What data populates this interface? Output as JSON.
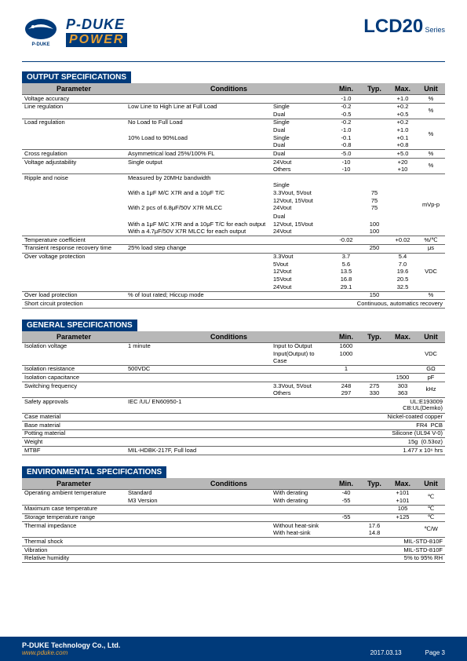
{
  "header": {
    "brand_sub": "P-DUKE",
    "brand_main": "P-DUKE",
    "brand_power": "POWER",
    "product": "LCD20",
    "series": "Series"
  },
  "sections": {
    "output": "OUTPUT SPECIFICATIONS",
    "general": "GENERAL SPECIFICATIONS",
    "env": "ENVIRONMENTAL SPECIFICATIONS"
  },
  "cols": {
    "param": "Parameter",
    "cond": "Conditions",
    "min": "Min.",
    "typ": "Typ.",
    "max": "Max.",
    "unit": "Unit"
  },
  "output_rows": [
    {
      "br": 1,
      "p": "Voltage accuracy",
      "c1": "",
      "c2": "",
      "min": "-1.0",
      "typ": "",
      "max": "+1.0",
      "unit": "%"
    },
    {
      "br": 1,
      "p": "Line regulation",
      "c1": "Low Line to High Line at Full Load",
      "c2": "Single",
      "min": "-0.2",
      "typ": "",
      "max": "+0.2",
      "unit": "%",
      "unit_rs": 2
    },
    {
      "br": 0,
      "p": "",
      "c1": "",
      "c2": "Dual",
      "min": "-0.5",
      "typ": "",
      "max": "+0.5"
    },
    {
      "br": 1,
      "p": "Load regulation",
      "c1": "No Load to Full Load",
      "c2": "Single",
      "min": "-0.2",
      "typ": "",
      "max": "+0.2",
      "unit": "%",
      "unit_rs": 4
    },
    {
      "br": 0,
      "p": "",
      "c1": "",
      "c2": "Dual",
      "min": "-1.0",
      "typ": "",
      "max": "+1.0"
    },
    {
      "br": 0,
      "p": "",
      "c1": "10% Load to 90%Load",
      "c2": "Single",
      "min": "-0.1",
      "typ": "",
      "max": "+0.1"
    },
    {
      "br": 0,
      "p": "",
      "c1": "",
      "c2": "Dual",
      "min": "-0.8",
      "typ": "",
      "max": "+0.8"
    },
    {
      "br": 1,
      "p": "Cross regulation",
      "c1": "Asymmetrical load 25%/100% FL",
      "c2": "Dual",
      "min": "-5.0",
      "typ": "",
      "max": "+5.0",
      "unit": "%"
    },
    {
      "br": 1,
      "p": "Voltage adjustability",
      "c1": "Single output",
      "c2": "24Vout",
      "min": "-10",
      "typ": "",
      "max": "+20",
      "unit": "%",
      "unit_rs": 2
    },
    {
      "br": 0,
      "p": "",
      "c1": "",
      "c2": "Others",
      "min": "-10",
      "typ": "",
      "max": "+10"
    },
    {
      "br": 1,
      "p": "Ripple and noise",
      "c1": "Measured by 20MHz bandwidth",
      "c2": "",
      "min": "",
      "typ": "",
      "max": "",
      "unit": "mVp-p",
      "unit_rs": 9
    },
    {
      "br": 0,
      "p": "",
      "c1": "",
      "c2": "Single",
      "min": "",
      "typ": "",
      "max": ""
    },
    {
      "br": 0,
      "p": "",
      "c1": "With a 1μF M/C X7R and a 10μF T/C",
      "c2": "3.3Vout, 5Vout",
      "min": "",
      "typ": "75",
      "max": ""
    },
    {
      "br": 0,
      "p": "",
      "c1": "",
      "c2": "12Vout, 15Vout",
      "min": "",
      "typ": "75",
      "max": ""
    },
    {
      "br": 0,
      "p": "",
      "c1": "With 2 pcs of 6.8μF/50V X7R MLCC",
      "c2": "24Vout",
      "min": "",
      "typ": "75",
      "max": ""
    },
    {
      "br": 0,
      "p": "",
      "c1": "",
      "c2": "",
      "min": "",
      "typ": "",
      "max": ""
    },
    {
      "br": 0,
      "p": "",
      "c1": "",
      "c2": "Dual",
      "min": "",
      "typ": "",
      "max": ""
    },
    {
      "br": 0,
      "p": "",
      "c1": "With a 1μF M/C X7R and a 10μF T/C for each output",
      "c2": "12Vout, 15Vout",
      "min": "",
      "typ": "100",
      "max": ""
    },
    {
      "br": 0,
      "p": "",
      "c1": "With a 4.7μF/50V X7R MLCC for each output",
      "c2": "24Vout",
      "min": "",
      "typ": "100",
      "max": ""
    },
    {
      "br": 1,
      "p": "Temperature coefficient",
      "c1": "",
      "c2": "",
      "min": "-0.02",
      "typ": "",
      "max": "+0.02",
      "unit": "%/℃"
    },
    {
      "br": 1,
      "p": "Transient response recovery time",
      "c1": "25% load step change",
      "c2": "",
      "min": "",
      "typ": "250",
      "max": "",
      "unit": "μs"
    },
    {
      "br": 1,
      "p": "Over voltage protection",
      "c1": "",
      "c2": "3.3Vout",
      "min": "3.7",
      "typ": "",
      "max": "5.4",
      "unit": "VDC",
      "unit_rs": 5
    },
    {
      "br": 0,
      "p": "",
      "c1": "",
      "c2": "5Vout",
      "min": "5.6",
      "typ": "",
      "max": "7.0"
    },
    {
      "br": 0,
      "p": "",
      "c1": "",
      "c2": "12Vout",
      "min": "13.5",
      "typ": "",
      "max": "19.6"
    },
    {
      "br": 0,
      "p": "",
      "c1": "",
      "c2": "15Vout",
      "min": "16.8",
      "typ": "",
      "max": "20.5"
    },
    {
      "br": 0,
      "p": "",
      "c1": "",
      "c2": "24Vout",
      "min": "29.1",
      "typ": "",
      "max": "32.5"
    },
    {
      "br": 1,
      "p": "Over load protection",
      "c1": "% of Iout rated; Hiccup mode",
      "c2": "",
      "min": "",
      "typ": "150",
      "max": "",
      "unit": "%"
    },
    {
      "br": 1,
      "p": "Short circuit protection",
      "c1": "",
      "c2": "",
      "note": "Continuous, automatics recovery",
      "note_cs": 4
    },
    {
      "br": 1,
      "p": "",
      "c1": "",
      "c2": "",
      "min": "",
      "typ": "",
      "max": "",
      "unit": "",
      "last": 1
    }
  ],
  "general_rows": [
    {
      "br": 1,
      "p": "Isolation voltage",
      "c1": "1 minute",
      "c2": "Input to Output",
      "min": "1600",
      "typ": "",
      "max": "",
      "unit": "VDC",
      "unit_rs": 2
    },
    {
      "br": 0,
      "p": "",
      "c1": "",
      "c2": "Input(Output) to Case",
      "min": "1000",
      "typ": "",
      "max": ""
    },
    {
      "br": 1,
      "p": "Isolation resistance",
      "c1": "500VDC",
      "c2": "",
      "min": "1",
      "typ": "",
      "max": "",
      "unit": "GΩ"
    },
    {
      "br": 1,
      "p": "Isolation capacitance",
      "c1": "",
      "c2": "",
      "min": "",
      "typ": "",
      "max": "1500",
      "unit": "pF"
    },
    {
      "br": 1,
      "p": "Switching frequency",
      "c1": "",
      "c2": "3.3Vout, 5Vout",
      "min": "248",
      "typ": "275",
      "max": "303",
      "unit": "kHz",
      "unit_rs": 2
    },
    {
      "br": 0,
      "p": "",
      "c1": "",
      "c2": "Others",
      "min": "297",
      "typ": "330",
      "max": "363"
    },
    {
      "br": 1,
      "p": "Safety approvals",
      "c1": "IEC /UL/ EN60950-1",
      "c2": "",
      "note": "UL:E193009\nCB:UL(Demko)",
      "note_cs": 4
    },
    {
      "br": 1,
      "p": "Case material",
      "c1": "",
      "c2": "",
      "note": "Nickel-coated copper",
      "note_cs": 4
    },
    {
      "br": 1,
      "p": "Base material",
      "c1": "",
      "c2": "",
      "note": "FR4  PCB",
      "note_cs": 4
    },
    {
      "br": 1,
      "p": "Potting material",
      "c1": "",
      "c2": "",
      "note": "Silicone (UL94 V-0)",
      "note_cs": 4
    },
    {
      "br": 1,
      "p": "Weight",
      "c1": "",
      "c2": "",
      "note": "15g  (0.53oz)",
      "note_cs": 4
    },
    {
      "br": 1,
      "p": "MTBF",
      "c1": "MIL-HDBK-217F, Full load",
      "c2": "",
      "note": "1.477 x 10⁶ hrs",
      "note_cs": 4
    },
    {
      "br": 1,
      "p": "",
      "c1": "",
      "c2": "",
      "min": "",
      "typ": "",
      "max": "",
      "unit": "",
      "last": 1
    }
  ],
  "env_rows": [
    {
      "br": 1,
      "p": "Operating ambient temperature",
      "c1": "Standard",
      "c2": "With derating",
      "min": "-40",
      "typ": "",
      "max": "+101",
      "unit": "℃",
      "unit_rs": 2
    },
    {
      "br": 0,
      "p": "",
      "c1": "M3 Version",
      "c2": "With derating",
      "min": "-55",
      "typ": "",
      "max": "+101"
    },
    {
      "br": 1,
      "p": "Maximum case temperature",
      "c1": "",
      "c2": "",
      "min": "",
      "typ": "",
      "max": "105",
      "unit": "℃"
    },
    {
      "br": 1,
      "p": "Storage temperature range",
      "c1": "",
      "c2": "",
      "min": "-55",
      "typ": "",
      "max": "+125",
      "unit": "℃"
    },
    {
      "br": 1,
      "p": "Thermal impedance",
      "c1": "",
      "c2": "Without heat-sink",
      "min": "",
      "typ": "17.6",
      "max": "",
      "unit": "℃/W",
      "unit_rs": 2
    },
    {
      "br": 0,
      "p": "",
      "c1": "",
      "c2": "With heat-sink",
      "min": "",
      "typ": "14.8",
      "max": ""
    },
    {
      "br": 1,
      "p": "Thermal shock",
      "c1": "",
      "c2": "",
      "note": "MIL-STD-810F",
      "note_cs": 4
    },
    {
      "br": 1,
      "p": "Vibration",
      "c1": "",
      "c2": "",
      "note": "MIL-STD-810F",
      "note_cs": 4
    },
    {
      "br": 1,
      "p": "Relative humidity",
      "c1": "",
      "c2": "",
      "note": "5% to 95% RH",
      "note_cs": 4
    },
    {
      "br": 1,
      "p": "",
      "c1": "",
      "c2": "",
      "min": "",
      "typ": "",
      "max": "",
      "unit": "",
      "last": 1
    }
  ],
  "footer": {
    "company": "P-DUKE Technology Co., Ltd.",
    "website": "www.pduke.com",
    "date": "2017.03.13",
    "page": "Page 3"
  }
}
